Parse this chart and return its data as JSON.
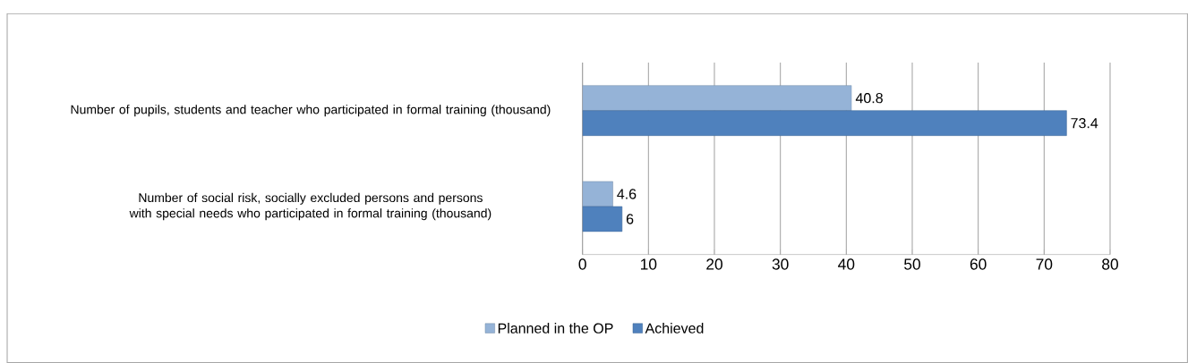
{
  "chart_data": {
    "type": "bar",
    "orientation": "horizontal",
    "categories": [
      "Number of pupils, students and teacher who participated in formal training (thousand)",
      "Number of social risk, socially excluded persons and persons with special needs who participated in formal training (thousand)"
    ],
    "series": [
      {
        "name": "Planned in the OP",
        "color": "#95b3d7",
        "values": [
          40.8,
          4.6
        ]
      },
      {
        "name": "Achieved",
        "color": "#4f81bd",
        "values": [
          73.4,
          6
        ]
      }
    ],
    "xlim": [
      0,
      80
    ],
    "xticks": [
      0,
      10,
      20,
      30,
      40,
      50,
      60,
      70,
      80
    ],
    "grid": "x",
    "legend": "bottom",
    "data_labels": true
  }
}
